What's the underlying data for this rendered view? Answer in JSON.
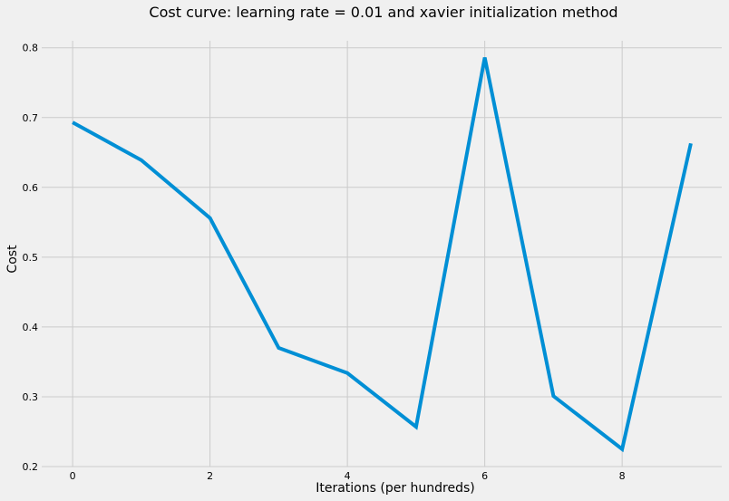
{
  "chart_data": {
    "type": "line",
    "title": "Cost curve: learning rate = 0.01 and xavier initialization method",
    "xlabel": "Iterations (per hundreds)",
    "ylabel": "Cost",
    "xlim": [
      -0.45,
      9.45
    ],
    "ylim": [
      0.2,
      0.81
    ],
    "x_ticks": [
      0,
      2,
      4,
      6,
      8
    ],
    "x_tick_labels": [
      "0",
      "2",
      "4",
      "6",
      "8"
    ],
    "y_ticks": [
      0.2,
      0.3,
      0.4,
      0.5,
      0.6,
      0.7,
      0.8
    ],
    "y_tick_labels": [
      "0.2",
      "0.3",
      "0.4",
      "0.5",
      "0.6",
      "0.7",
      "0.8"
    ],
    "grid": true,
    "series": [
      {
        "x": [
          0,
          1,
          2,
          3,
          4,
          5,
          6,
          7,
          8,
          9
        ],
        "values": [
          0.693,
          0.639,
          0.556,
          0.37,
          0.334,
          0.257,
          0.786,
          0.301,
          0.225,
          0.663
        ],
        "color": "#008fd5"
      }
    ]
  },
  "colors": {
    "background": "#f0f0f0",
    "grid": "#cbcbcb",
    "line": "#008fd5"
  }
}
